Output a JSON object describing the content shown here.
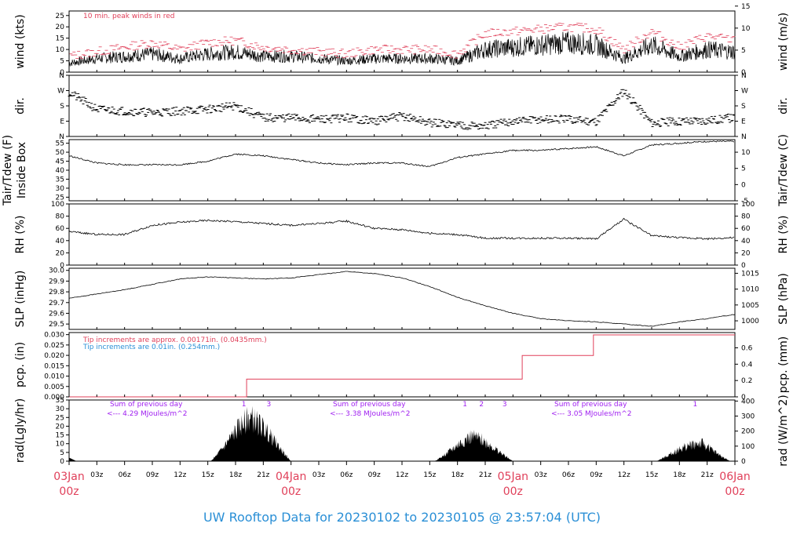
{
  "title": "UW Rooftop Data for 20230102  to  20230105 @ 23:57:04  (UTC)",
  "colors": {
    "title": "#2a8fd6",
    "red": "#e0405a",
    "blue": "#2a8fd6",
    "purple": "#a020f0",
    "black": "#000000"
  },
  "x_axis": {
    "ticks": [
      "03Jan",
      "03z",
      "06z",
      "09z",
      "12z",
      "15z",
      "18z",
      "21z",
      "04Jan",
      "03z",
      "06z",
      "09z",
      "12z",
      "15z",
      "18z",
      "21z",
      "05Jan",
      "03z",
      "06z",
      "09z",
      "12z",
      "15z",
      "18z",
      "21z",
      "06Jan"
    ],
    "day_labels": [
      {
        "day": "03Jan",
        "hour": "00z"
      },
      {
        "day": "04Jan",
        "hour": "00z"
      },
      {
        "day": "05Jan",
        "hour": "00z"
      },
      {
        "day": "06Jan",
        "hour": "00z"
      }
    ],
    "range_hours": [
      0,
      72
    ]
  },
  "panels": {
    "wind": {
      "left_label": "wind (kts)",
      "right_label": "wind (m/s)",
      "left_ticks": [
        "0",
        "5",
        "10",
        "15",
        "20",
        "25"
      ],
      "right_ticks": [
        "0",
        "5",
        "10",
        "15"
      ],
      "note": "10 min. peak winds in red"
    },
    "dir": {
      "left_label": "dir.",
      "right_label": "dir.",
      "ticks": [
        "N",
        "E",
        "S",
        "W",
        "N"
      ]
    },
    "temp": {
      "left_label_1": "Tair/Tdew (F)",
      "left_label_2": "Inside Box",
      "right_label": "Tair/Tdew (C)",
      "left_ticks": [
        "25",
        "30",
        "35",
        "40",
        "45",
        "50",
        "55"
      ],
      "right_ticks": [
        "-5",
        "0",
        "5",
        "10"
      ]
    },
    "rh": {
      "left_label": "RH (%)",
      "right_label": "RH (%)",
      "ticks": [
        "0",
        "20",
        "40",
        "60",
        "80",
        "100"
      ]
    },
    "slp": {
      "left_label": "SLP (inHg)",
      "right_label": "SLP (hPa)",
      "left_ticks": [
        "29.5",
        "29.6",
        "29.7",
        "29.8",
        "29.9",
        "30.0"
      ],
      "right_ticks": [
        "1000",
        "1005",
        "1010",
        "1015"
      ]
    },
    "pcp": {
      "left_label": "pcp. (in)",
      "right_label": "pcp. (mm)",
      "left_ticks": [
        "0.000",
        "0.005",
        "0.010",
        "0.015",
        "0.020",
        "0.025",
        "0.030"
      ],
      "right_ticks": [
        "0",
        "0.2",
        "0.4",
        "0.6"
      ],
      "note_red": "Tip increments are approx. 0.00171in. (0.0435mm.)",
      "note_blue": "Tip increments are 0.01in. (0.254mm.)"
    },
    "rad": {
      "left_label": "rad(Lgly/hr)",
      "right_label": "rad (W/m^2)",
      "left_ticks": [
        "0",
        "5",
        "10",
        "15",
        "20",
        "25",
        "30",
        "35"
      ],
      "right_ticks": [
        "0",
        "100",
        "200",
        "300",
        "400"
      ],
      "day_notes": [
        {
          "line1": "Sum of previous day",
          "line2": "<--- 4.29 MJoules/m^2"
        },
        {
          "line1": "Sum of previous day",
          "line2": "<--- 3.38 MJoules/m^2"
        },
        {
          "line1": "Sum of previous day",
          "line2": "<--- 3.05 MJoules/m^2"
        }
      ],
      "marks": [
        [
          "1",
          "3"
        ],
        [
          "1",
          "2",
          "3"
        ],
        [
          "1"
        ]
      ]
    }
  },
  "chart_data": [
    {
      "type": "line",
      "name": "wind",
      "ylim": [
        0,
        27
      ],
      "x": [
        0,
        3,
        6,
        9,
        12,
        15,
        18,
        21,
        24,
        27,
        30,
        33,
        36,
        39,
        42,
        45,
        48,
        51,
        54,
        57,
        60,
        63,
        66,
        69,
        72
      ],
      "series": [
        {
          "name": "wind",
          "values": [
            4,
            6,
            7,
            8,
            6,
            8,
            9,
            7,
            7,
            6,
            5,
            6,
            6,
            6,
            5,
            10,
            11,
            12,
            13,
            12,
            6,
            12,
            7,
            10,
            9
          ]
        },
        {
          "name": "peak",
          "values": [
            7,
            9,
            11,
            13,
            10,
            13,
            14,
            11,
            10,
            9,
            8,
            10,
            10,
            10,
            8,
            17,
            18,
            19,
            20,
            19,
            10,
            18,
            11,
            16,
            14
          ]
        }
      ]
    },
    {
      "type": "scatter",
      "name": "dir",
      "ylim": [
        0,
        360
      ],
      "x": [
        0,
        3,
        6,
        9,
        12,
        15,
        18,
        21,
        24,
        27,
        30,
        33,
        36,
        39,
        42,
        45,
        48,
        51,
        54,
        57,
        60,
        63,
        66,
        69,
        72
      ],
      "values": [
        260,
        160,
        150,
        140,
        150,
        160,
        180,
        110,
        110,
        100,
        110,
        90,
        120,
        80,
        70,
        60,
        90,
        100,
        100,
        90,
        270,
        80,
        90,
        95,
        110
      ]
    },
    {
      "type": "line",
      "name": "temp_f",
      "ylim": [
        23,
        57
      ],
      "x": [
        0,
        3,
        6,
        9,
        12,
        15,
        18,
        21,
        24,
        27,
        30,
        33,
        36,
        39,
        42,
        45,
        48,
        51,
        54,
        57,
        60,
        63,
        66,
        69,
        72
      ],
      "values": [
        48,
        44,
        43,
        43,
        43,
        45,
        49,
        48,
        46,
        44,
        43,
        44,
        44,
        42,
        47,
        49,
        51,
        51,
        52,
        53,
        48,
        54,
        55,
        56,
        56
      ]
    },
    {
      "type": "line",
      "name": "rh",
      "ylim": [
        0,
        100
      ],
      "x": [
        0,
        3,
        6,
        9,
        12,
        15,
        18,
        21,
        24,
        27,
        30,
        33,
        36,
        39,
        42,
        45,
        48,
        51,
        54,
        57,
        60,
        63,
        66,
        69,
        72
      ],
      "values": [
        55,
        50,
        50,
        65,
        70,
        73,
        71,
        68,
        65,
        68,
        72,
        60,
        58,
        52,
        50,
        44,
        44,
        44,
        44,
        43,
        75,
        48,
        45,
        43,
        45
      ]
    },
    {
      "type": "line",
      "name": "slp",
      "ylim": [
        29.45,
        30.02
      ],
      "x": [
        0,
        3,
        6,
        9,
        12,
        15,
        18,
        21,
        24,
        27,
        30,
        33,
        36,
        39,
        42,
        45,
        48,
        51,
        54,
        57,
        60,
        63,
        66,
        69,
        72
      ],
      "values": [
        29.74,
        29.78,
        29.82,
        29.87,
        29.92,
        29.94,
        29.93,
        29.92,
        29.93,
        29.96,
        29.99,
        29.97,
        29.93,
        29.85,
        29.75,
        29.67,
        29.6,
        29.55,
        29.53,
        29.52,
        29.5,
        29.48,
        29.52,
        29.55,
        29.59
      ]
    },
    {
      "type": "line",
      "name": "pcp",
      "ylim": [
        0,
        0.031
      ],
      "x": [
        0,
        19.2,
        19.2,
        49.0,
        49.0,
        56.7,
        56.7,
        72
      ],
      "values": [
        0,
        0,
        0.00855,
        0.00855,
        0.01995,
        0.01995,
        0.02985,
        0.02985
      ]
    },
    {
      "type": "area",
      "name": "rad",
      "ylim": [
        0,
        35
      ],
      "days": [
        {
          "start": 15.3,
          "end": 24,
          "peak_at": 19.5,
          "peak": 30
        },
        {
          "start": 39.5,
          "end": 48,
          "peak_at": 43.5,
          "peak": 17
        },
        {
          "start": 63.5,
          "end": 71.5,
          "peak_at": 68.5,
          "peak": 13
        }
      ]
    }
  ]
}
